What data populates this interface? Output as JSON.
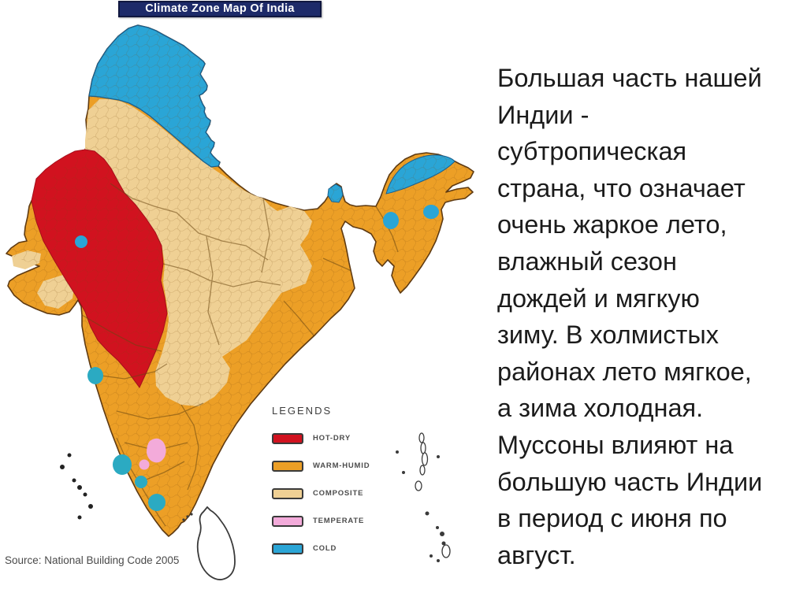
{
  "map": {
    "title": "Climate Zone Map Of India",
    "source": "Source: National Building Code 2005",
    "title_colors": {
      "background": "#1D2A69",
      "text": "#FFFFFF",
      "border": "#10173F"
    },
    "zones": {
      "hot_dry": "#D1121F",
      "warm_humid": "#EC9F26",
      "composite": "#EFD094",
      "temperate": "#F3ABDA",
      "cold": "#2AA5D6",
      "cold_hill_spot": "#2BAAC2",
      "outline": "#5E3A12",
      "district_line": "#7A4A10",
      "state_line": "#6B4712",
      "neighbor_outline": "#3A3A3A"
    },
    "legend": {
      "title": "LEGENDS",
      "items": [
        {
          "label": "HOT-DRY",
          "color": "#D1121F"
        },
        {
          "label": "WARM-HUMID",
          "color": "#EC9F26"
        },
        {
          "label": "COMPOSITE",
          "color": "#EFD094"
        },
        {
          "label": "TEMPERATE",
          "color": "#F3ABDA"
        },
        {
          "label": "COLD",
          "color": "#2AA5D6"
        }
      ]
    }
  },
  "description": {
    "lines": [
      "Большая часть нашей",
      "Индии -",
      "субтропическая",
      "страна, что означает",
      "очень жаркое лето,",
      "влажный сезон",
      "дождей и мягкую",
      "зиму. В холмистых",
      "районах лето мягкое,",
      "а зима холодная.",
      "Муссоны влияют на",
      "большую часть Индии",
      "в период с июня по",
      "август."
    ]
  }
}
